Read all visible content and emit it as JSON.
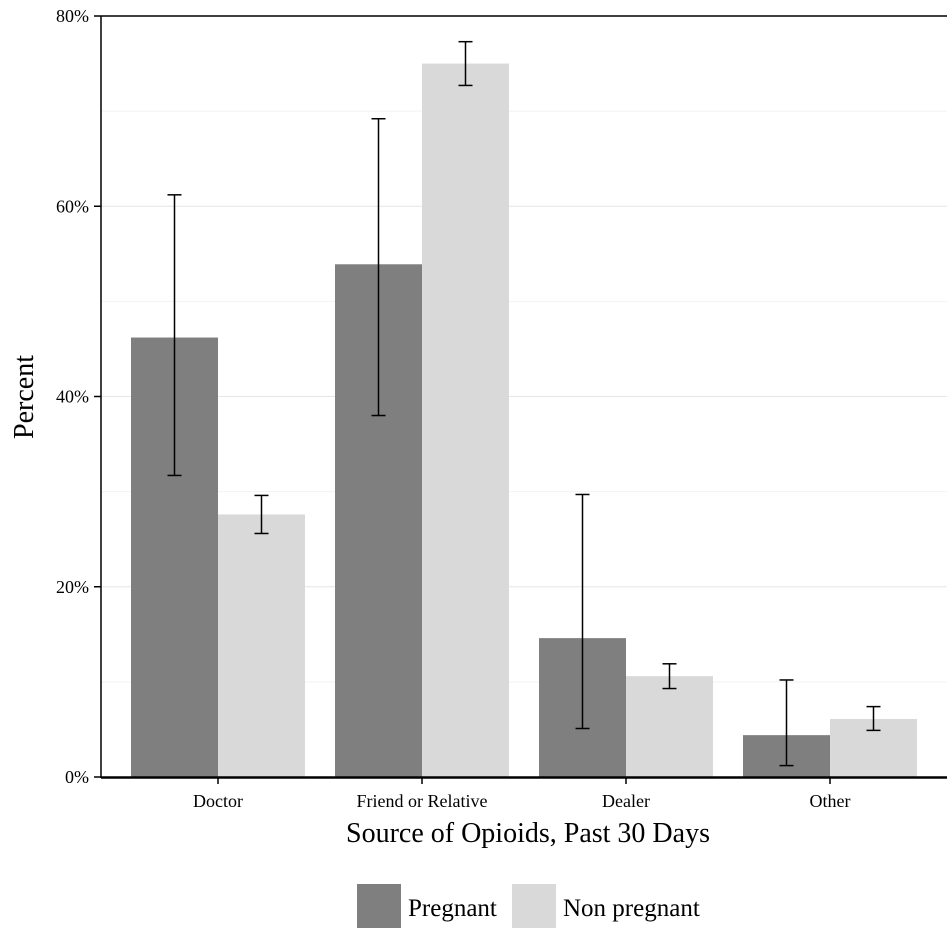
{
  "chart_data": {
    "type": "bar",
    "xlabel": "Source of Opioids, Past 30 Days",
    "ylabel": "Percent",
    "ylim": [
      0,
      80
    ],
    "yticks": [
      "0%",
      "20%",
      "40%",
      "60%",
      "80%"
    ],
    "categories": [
      "Doctor",
      "Friend or Relative",
      "Dealer",
      "Other"
    ],
    "series": [
      {
        "name": "Pregnant",
        "color": "#7f7f7f",
        "values": [
          46.2,
          53.9,
          14.6,
          4.4
        ],
        "error_low": [
          31.7,
          38.0,
          5.1,
          1.2
        ],
        "error_high": [
          61.2,
          69.2,
          29.7,
          10.2
        ]
      },
      {
        "name": "Non pregnant",
        "color": "#d9d9d9",
        "values": [
          27.6,
          75.0,
          10.6,
          6.1
        ],
        "error_low": [
          25.6,
          72.7,
          9.3,
          4.9
        ],
        "error_high": [
          29.6,
          77.3,
          11.9,
          7.4
        ]
      }
    ],
    "grid": true,
    "legend_position": "bottom"
  }
}
